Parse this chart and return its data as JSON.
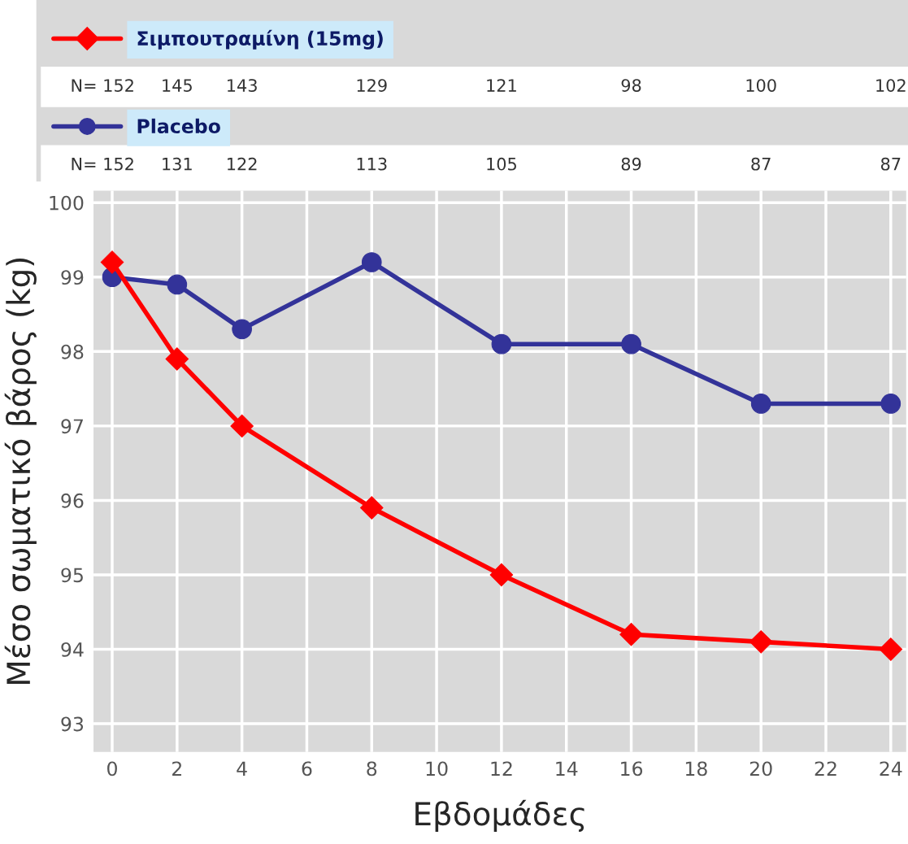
{
  "chart_data": {
    "type": "line",
    "xlabel": "Εβδομάδες",
    "ylabel": "Μέσο σωματικό βάρος (kg)",
    "xlim": [
      -0.575,
      24.475
    ],
    "ylim": [
      92.62,
      100.16
    ],
    "xticks": [
      0,
      2,
      4,
      6,
      8,
      10,
      12,
      14,
      16,
      18,
      20,
      22,
      24
    ],
    "yticks": [
      93,
      94,
      95,
      96,
      97,
      98,
      99,
      100
    ],
    "grid": true,
    "legend": "top left",
    "series": [
      {
        "name": "Σιμπουτραμίνη (15mg)",
        "color": "#ff0000",
        "marker": "diamond",
        "x": [
          0,
          2,
          4,
          8,
          12,
          16,
          20,
          24
        ],
        "values": [
          99.2,
          97.9,
          97.0,
          95.9,
          95.0,
          94.2,
          94.1,
          94.0
        ]
      },
      {
        "name": "Placebo",
        "color": "#333399",
        "marker": "circle",
        "x": [
          0,
          2,
          4,
          8,
          12,
          16,
          20,
          24
        ],
        "values": [
          99.0,
          98.9,
          98.3,
          99.2,
          98.1,
          98.1,
          97.3,
          97.3
        ]
      }
    ],
    "annotations": [
      "N= 152",
      "145",
      "143",
      "129",
      "121",
      "98",
      "100",
      "102",
      "N= 152",
      "131",
      "122",
      "113",
      "105",
      "89",
      "87",
      "87"
    ]
  }
}
